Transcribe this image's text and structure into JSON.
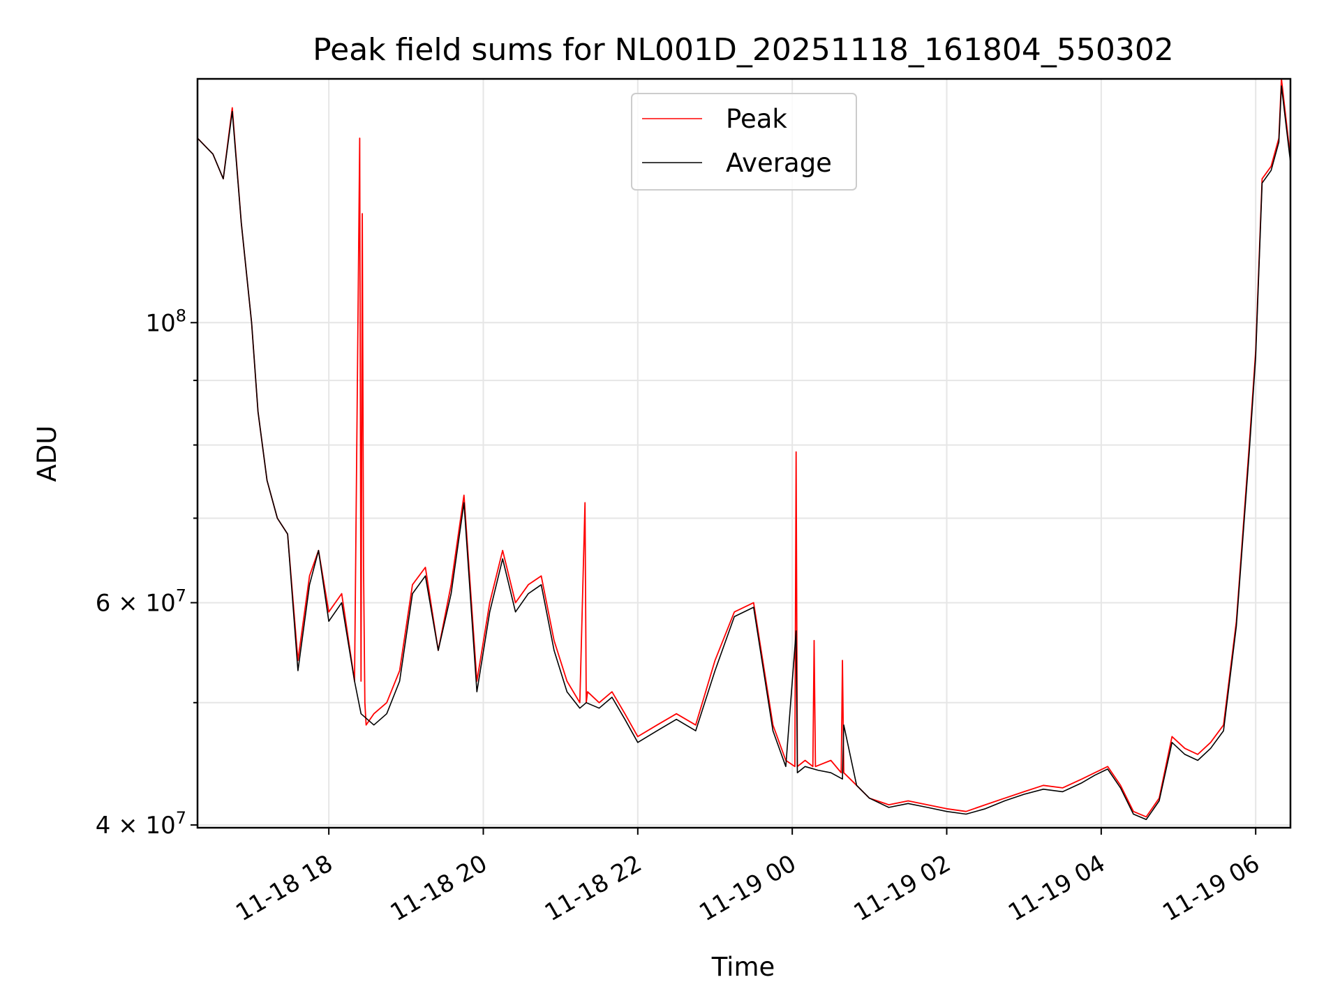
{
  "chart_data": {
    "type": "line",
    "title": "Peak field sums for NL001D_20251118_161804_550302",
    "xlabel": "Time",
    "ylabel": "ADU",
    "y_scale": "log",
    "xlim": [
      "2025-11-18 16:18",
      "2025-11-19 06:27"
    ],
    "ylim": [
      39800000,
      156000000
    ],
    "x_ticks": [
      {
        "x": "2025-11-18 18:00",
        "label": "11-18 18"
      },
      {
        "x": "2025-11-18 20:00",
        "label": "11-18 20"
      },
      {
        "x": "2025-11-18 22:00",
        "label": "11-18 22"
      },
      {
        "x": "2025-11-19 00:00",
        "label": "11-19 00"
      },
      {
        "x": "2025-11-19 02:00",
        "label": "11-19 02"
      },
      {
        "x": "2025-11-19 04:00",
        "label": "11-19 04"
      },
      {
        "x": "2025-11-19 06:00",
        "label": "11-19 06"
      }
    ],
    "y_ticks": [
      {
        "y": 100000000,
        "base": "10",
        "exp": "8"
      },
      {
        "y": 60000000,
        "base": "6 × 10",
        "exp": "7"
      },
      {
        "y": 40000000,
        "base": "4 × 10",
        "exp": "7"
      }
    ],
    "y_minor_ticks": [
      50000000,
      70000000,
      80000000,
      90000000
    ],
    "grid": true,
    "legend_position": "top-center",
    "series": [
      {
        "name": "Peak",
        "color": "#ff0000",
        "x": [
          "2025-11-18 16:18",
          "2025-11-18 16:30",
          "2025-11-18 16:38",
          "2025-11-18 16:45",
          "2025-11-18 16:52",
          "2025-11-18 17:00",
          "2025-11-18 17:05",
          "2025-11-18 17:12",
          "2025-11-18 17:20",
          "2025-11-18 17:28",
          "2025-11-18 17:36",
          "2025-11-18 17:45",
          "2025-11-18 17:52",
          "2025-11-18 18:00",
          "2025-11-18 18:10",
          "2025-11-18 18:20",
          "2025-11-18 18:24",
          "2025-11-18 18:25",
          "2025-11-18 18:26",
          "2025-11-18 18:27",
          "2025-11-18 18:28",
          "2025-11-18 18:29",
          "2025-11-18 18:35",
          "2025-11-18 18:45",
          "2025-11-18 18:55",
          "2025-11-18 19:05",
          "2025-11-18 19:15",
          "2025-11-18 19:25",
          "2025-11-18 19:35",
          "2025-11-18 19:45",
          "2025-11-18 19:55",
          "2025-11-18 20:05",
          "2025-11-18 20:15",
          "2025-11-18 20:25",
          "2025-11-18 20:35",
          "2025-11-18 20:45",
          "2025-11-18 20:55",
          "2025-11-18 21:05",
          "2025-11-18 21:15",
          "2025-11-18 21:19",
          "2025-11-18 21:20",
          "2025-11-18 21:21",
          "2025-11-18 21:30",
          "2025-11-18 21:40",
          "2025-11-18 21:50",
          "2025-11-18 22:00",
          "2025-11-18 22:15",
          "2025-11-18 22:30",
          "2025-11-18 22:45",
          "2025-11-18 23:00",
          "2025-11-18 23:15",
          "2025-11-18 23:30",
          "2025-11-18 23:45",
          "2025-11-18 23:55",
          "2025-11-19 00:02",
          "2025-11-19 00:03",
          "2025-11-19 00:04",
          "2025-11-19 00:10",
          "2025-11-19 00:16",
          "2025-11-19 00:17",
          "2025-11-19 00:18",
          "2025-11-19 00:30",
          "2025-11-19 00:38",
          "2025-11-19 00:39",
          "2025-11-19 00:40",
          "2025-11-19 00:50",
          "2025-11-19 01:00",
          "2025-11-19 01:15",
          "2025-11-19 01:30",
          "2025-11-19 01:45",
          "2025-11-19 02:00",
          "2025-11-19 02:15",
          "2025-11-19 02:30",
          "2025-11-19 02:45",
          "2025-11-19 03:00",
          "2025-11-19 03:15",
          "2025-11-19 03:30",
          "2025-11-19 03:45",
          "2025-11-19 03:55",
          "2025-11-19 04:05",
          "2025-11-19 04:15",
          "2025-11-19 04:25",
          "2025-11-19 04:35",
          "2025-11-19 04:45",
          "2025-11-19 04:55",
          "2025-11-19 05:05",
          "2025-11-19 05:15",
          "2025-11-19 05:25",
          "2025-11-19 05:35",
          "2025-11-19 05:45",
          "2025-11-19 05:55",
          "2025-11-19 06:00",
          "2025-11-19 06:05",
          "2025-11-19 06:12",
          "2025-11-19 06:18",
          "2025-11-19 06:20",
          "2025-11-19 06:27"
        ],
        "y": [
          140000000,
          136000000,
          130000000,
          148000000,
          120000000,
          100000000,
          85000000,
          75000000,
          70000000,
          68000000,
          54000000,
          63000000,
          66000000,
          59000000,
          61000000,
          52000000,
          140000000,
          52000000,
          122000000,
          64000000,
          50000000,
          48000000,
          49000000,
          50000000,
          53000000,
          62000000,
          64000000,
          55000000,
          62000000,
          73000000,
          52000000,
          60000000,
          66000000,
          60000000,
          62000000,
          63000000,
          56000000,
          52000000,
          50000000,
          72000000,
          50000000,
          51000000,
          50000000,
          51000000,
          49000000,
          47000000,
          48000000,
          49000000,
          48000000,
          54000000,
          59000000,
          60000000,
          48000000,
          45000000,
          44500000,
          79000000,
          44500000,
          45000000,
          44500000,
          56000000,
          44500000,
          45000000,
          44000000,
          54000000,
          44000000,
          43000000,
          42000000,
          41500000,
          41800000,
          41500000,
          41200000,
          41000000,
          41500000,
          42000000,
          42500000,
          43000000,
          42800000,
          43500000,
          44000000,
          44500000,
          43000000,
          41000000,
          40600000,
          42000000,
          47000000,
          46000000,
          45500000,
          46500000,
          48000000,
          58000000,
          80000000,
          95000000,
          130000000,
          133000000,
          140000000,
          156000000,
          135000000
        ]
      },
      {
        "name": "Average",
        "color": "#000000",
        "x": [
          "2025-11-18 16:18",
          "2025-11-18 16:30",
          "2025-11-18 16:38",
          "2025-11-18 16:45",
          "2025-11-18 16:52",
          "2025-11-18 17:00",
          "2025-11-18 17:05",
          "2025-11-18 17:12",
          "2025-11-18 17:20",
          "2025-11-18 17:28",
          "2025-11-18 17:36",
          "2025-11-18 17:45",
          "2025-11-18 17:52",
          "2025-11-18 18:00",
          "2025-11-18 18:10",
          "2025-11-18 18:20",
          "2025-11-18 18:25",
          "2025-11-18 18:35",
          "2025-11-18 18:45",
          "2025-11-18 18:55",
          "2025-11-18 19:05",
          "2025-11-18 19:15",
          "2025-11-18 19:25",
          "2025-11-18 19:35",
          "2025-11-18 19:45",
          "2025-11-18 19:55",
          "2025-11-18 20:05",
          "2025-11-18 20:15",
          "2025-11-18 20:25",
          "2025-11-18 20:35",
          "2025-11-18 20:45",
          "2025-11-18 20:55",
          "2025-11-18 21:05",
          "2025-11-18 21:15",
          "2025-11-18 21:20",
          "2025-11-18 21:30",
          "2025-11-18 21:40",
          "2025-11-18 21:50",
          "2025-11-18 22:00",
          "2025-11-18 22:15",
          "2025-11-18 22:30",
          "2025-11-18 22:45",
          "2025-11-18 23:00",
          "2025-11-18 23:15",
          "2025-11-18 23:30",
          "2025-11-18 23:45",
          "2025-11-18 23:55",
          "2025-11-19 00:03",
          "2025-11-19 00:04",
          "2025-11-19 00:10",
          "2025-11-19 00:20",
          "2025-11-19 00:30",
          "2025-11-19 00:39",
          "2025-11-19 00:40",
          "2025-11-19 00:50",
          "2025-11-19 01:00",
          "2025-11-19 01:15",
          "2025-11-19 01:30",
          "2025-11-19 01:45",
          "2025-11-19 02:00",
          "2025-11-19 02:15",
          "2025-11-19 02:30",
          "2025-11-19 02:45",
          "2025-11-19 03:00",
          "2025-11-19 03:15",
          "2025-11-19 03:30",
          "2025-11-19 03:45",
          "2025-11-19 03:55",
          "2025-11-19 04:05",
          "2025-11-19 04:15",
          "2025-11-19 04:25",
          "2025-11-19 04:35",
          "2025-11-19 04:45",
          "2025-11-19 04:55",
          "2025-11-19 05:05",
          "2025-11-19 05:15",
          "2025-11-19 05:25",
          "2025-11-19 05:35",
          "2025-11-19 05:45",
          "2025-11-19 05:55",
          "2025-11-19 06:00",
          "2025-11-19 06:05",
          "2025-11-19 06:12",
          "2025-11-19 06:18",
          "2025-11-19 06:20",
          "2025-11-19 06:27"
        ],
        "y": [
          140000000,
          136000000,
          130000000,
          147000000,
          120000000,
          100000000,
          85000000,
          75000000,
          70000000,
          68000000,
          53000000,
          62000000,
          66000000,
          58000000,
          60000000,
          52000000,
          49000000,
          48000000,
          49000000,
          52000000,
          61000000,
          63000000,
          55000000,
          61000000,
          72000000,
          51000000,
          59000000,
          65000000,
          59000000,
          61000000,
          62000000,
          55000000,
          51000000,
          49500000,
          50000000,
          49500000,
          50500000,
          48500000,
          46500000,
          47500000,
          48500000,
          47500000,
          53000000,
          58500000,
          59500000,
          47500000,
          44500000,
          57000000,
          44000000,
          44500000,
          44200000,
          44000000,
          43500000,
          48000000,
          43000000,
          42000000,
          41300000,
          41600000,
          41300000,
          41000000,
          40800000,
          41200000,
          41800000,
          42300000,
          42700000,
          42500000,
          43200000,
          43800000,
          44300000,
          42800000,
          40800000,
          40400000,
          41800000,
          46500000,
          45500000,
          45000000,
          46000000,
          47500000,
          57500000,
          79000000,
          94000000,
          129000000,
          132000000,
          139000000,
          154000000,
          134000000
        ]
      }
    ]
  }
}
